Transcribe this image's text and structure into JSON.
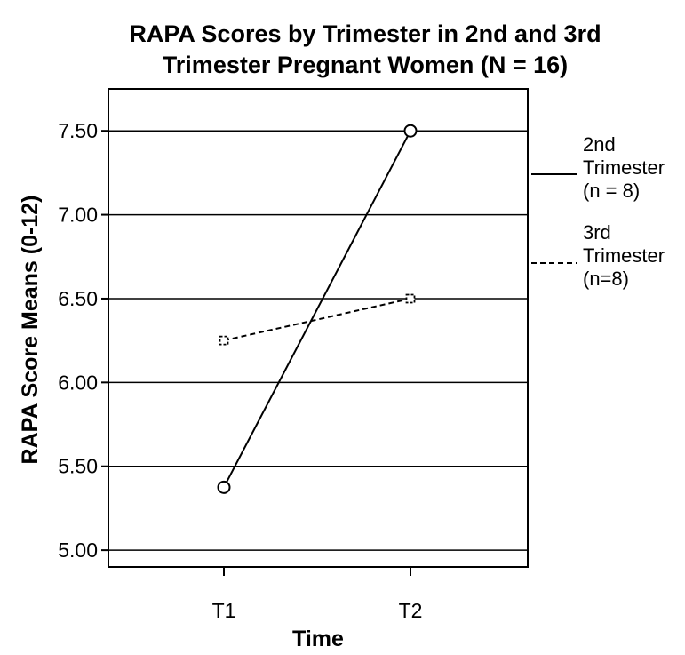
{
  "chart_data": {
    "type": "line",
    "title_lines": [
      "RAPA Scores by Trimester in 2nd and 3rd",
      "Trimester Pregnant Women (N = 16)"
    ],
    "xlabel": "Time",
    "ylabel": "RAPA Score Means (0-12)",
    "categories": [
      "T1",
      "T2"
    ],
    "ylim": [
      4.9,
      7.75
    ],
    "yticks": [
      5.0,
      5.5,
      6.0,
      6.5,
      7.0,
      7.5
    ],
    "ytick_labels": [
      "5.00",
      "5.50",
      "6.00",
      "6.50",
      "7.00",
      "7.50"
    ],
    "grid": "horizontal",
    "legend_position": "right",
    "series": [
      {
        "name_lines": [
          "2nd",
          "Trimester",
          "(n = 8)"
        ],
        "values": [
          5.375,
          7.5
        ],
        "line_style": "solid",
        "marker": "circle",
        "color": "#000000"
      },
      {
        "name_lines": [
          "3rd",
          "Trimester",
          "(n=8)"
        ],
        "values": [
          6.25,
          6.5
        ],
        "line_style": "dashed",
        "marker": "square",
        "color": "#000000"
      }
    ]
  }
}
